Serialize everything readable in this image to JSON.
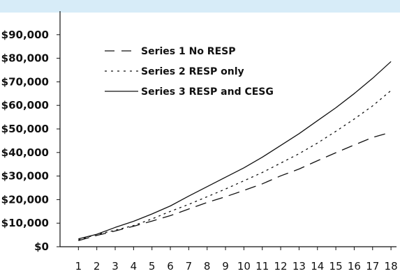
{
  "chart_data": {
    "type": "line",
    "title": "",
    "xlabel": "",
    "ylabel": "",
    "x": [
      1,
      2,
      3,
      4,
      5,
      6,
      7,
      8,
      9,
      10,
      11,
      12,
      13,
      14,
      15,
      16,
      17,
      18
    ],
    "x_tick_labels": [
      "1",
      "2",
      "3",
      "4",
      "5",
      "6",
      "7",
      "8",
      "9",
      "10",
      "11",
      "12",
      "13",
      "14",
      "15",
      "16",
      "17",
      "18"
    ],
    "y_tick_values": [
      0,
      10000,
      20000,
      30000,
      40000,
      50000,
      60000,
      70000,
      80000,
      90000
    ],
    "y_tick_labels": [
      "$0",
      "$10,000",
      "$20,000",
      "$30,000",
      "$40,000",
      "$50,000",
      "$60,000",
      "$70,000",
      "$80,000",
      "$90,000"
    ],
    "ylim": [
      0,
      100000
    ],
    "xlim": [
      0,
      18.3
    ],
    "grid": false,
    "legend": {
      "position": "top-left-inside"
    },
    "series": [
      {
        "name": "Series 1 No RESP",
        "style": "dashed",
        "color": "#111111",
        "values": [
          2600,
          4800,
          6700,
          8700,
          10900,
          13200,
          16000,
          18800,
          21200,
          23900,
          26700,
          30100,
          33000,
          36500,
          39900,
          43200,
          46400,
          48600
        ]
      },
      {
        "name": "Series 2 RESP only",
        "style": "dotted",
        "color": "#111111",
        "values": [
          2900,
          5200,
          7000,
          9000,
          11800,
          15000,
          18000,
          21200,
          24500,
          28000,
          31500,
          35500,
          39500,
          44000,
          49000,
          54200,
          59800,
          66300
        ]
      },
      {
        "name": "Series 3 RESP and CESG",
        "style": "solid",
        "color": "#111111",
        "values": [
          3300,
          5300,
          8200,
          10800,
          13900,
          17300,
          21500,
          25500,
          29500,
          33500,
          38000,
          43000,
          48000,
          53500,
          59000,
          65000,
          71500,
          78600
        ]
      }
    ]
  }
}
